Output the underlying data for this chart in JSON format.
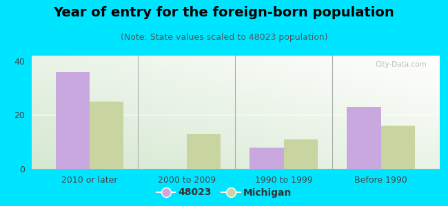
{
  "title": "Year of entry for the foreign-born population",
  "subtitle": "(Note: State values scaled to 48023 population)",
  "categories": [
    "2010 or later",
    "2000 to 2009",
    "1990 to 1999",
    "Before 1990"
  ],
  "values_48023": [
    36,
    0,
    8,
    23
  ],
  "values_michigan": [
    25,
    13,
    11,
    16
  ],
  "color_48023": "#c9a8e0",
  "color_michigan": "#c8d5a0",
  "background_color": "#00e5ff",
  "ylim": [
    0,
    42
  ],
  "yticks": [
    0,
    20,
    40
  ],
  "bar_width": 0.35,
  "legend_label_48023": "48023",
  "legend_label_michigan": "Michigan",
  "title_fontsize": 14,
  "subtitle_fontsize": 9,
  "tick_fontsize": 9,
  "legend_fontsize": 10
}
